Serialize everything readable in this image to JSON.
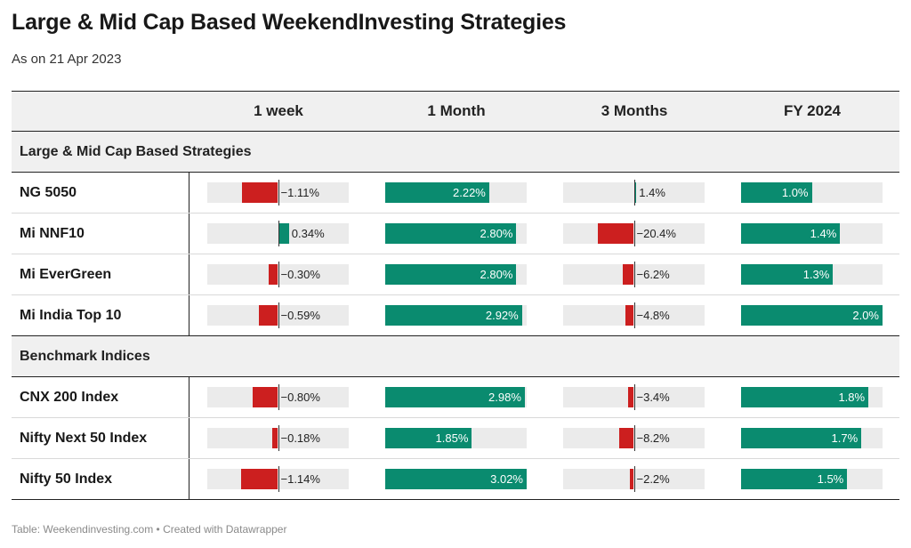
{
  "title": "Large & Mid Cap Based WeekendInvesting Strategies",
  "subtitle": "As on 21 Apr 2023",
  "footer": "Table: Weekendinvesting.com • Created with Datawrapper",
  "colors": {
    "positive": "#0a8b6f",
    "negative": "#cc1f1f",
    "track": "#ebebeb",
    "header_bg": "#f0f0f0"
  },
  "chart_data": {
    "type": "table",
    "columns": [
      "1 week",
      "1 Month",
      "3 Months",
      "FY 2024"
    ],
    "groups": [
      {
        "name": "Large & Mid Cap Based Strategies",
        "rows": [
          {
            "name": "NG 5050",
            "values": [
              -1.11,
              2.22,
              1.4,
              1.0
            ],
            "labels": [
              "−1.11%",
              "2.22%",
              "1.4%",
              "1.0%"
            ]
          },
          {
            "name": "Mi NNF10",
            "values": [
              0.34,
              2.8,
              -20.4,
              1.4
            ],
            "labels": [
              "0.34%",
              "2.80%",
              "−20.4%",
              "1.4%"
            ]
          },
          {
            "name": "Mi EverGreen",
            "values": [
              -0.3,
              2.8,
              -6.2,
              1.3
            ],
            "labels": [
              "−0.30%",
              "2.80%",
              "−6.2%",
              "1.3%"
            ]
          },
          {
            "name": "Mi India Top 10",
            "values": [
              -0.59,
              2.92,
              -4.8,
              2.0
            ],
            "labels": [
              "−0.59%",
              "2.92%",
              "−4.8%",
              "2.0%"
            ]
          }
        ]
      },
      {
        "name": "Benchmark Indices",
        "rows": [
          {
            "name": "CNX 200 Index",
            "values": [
              -0.8,
              2.98,
              -3.4,
              1.8
            ],
            "labels": [
              "−0.80%",
              "2.98%",
              "−3.4%",
              "1.8%"
            ]
          },
          {
            "name": "Nifty Next 50 Index",
            "values": [
              -0.18,
              1.85,
              -8.2,
              1.7
            ],
            "labels": [
              "−0.18%",
              "1.85%",
              "−8.2%",
              "1.7%"
            ]
          },
          {
            "name": "Nifty 50 Index",
            "values": [
              -1.14,
              3.02,
              -2.2,
              1.5
            ],
            "labels": [
              "−1.14%",
              "3.02%",
              "−2.2%",
              "1.5%"
            ]
          }
        ]
      }
    ],
    "column_ranges": [
      [
        -2.2,
        2.2
      ],
      [
        0,
        3.02
      ],
      [
        -40,
        40
      ],
      [
        0,
        2.0
      ]
    ]
  }
}
